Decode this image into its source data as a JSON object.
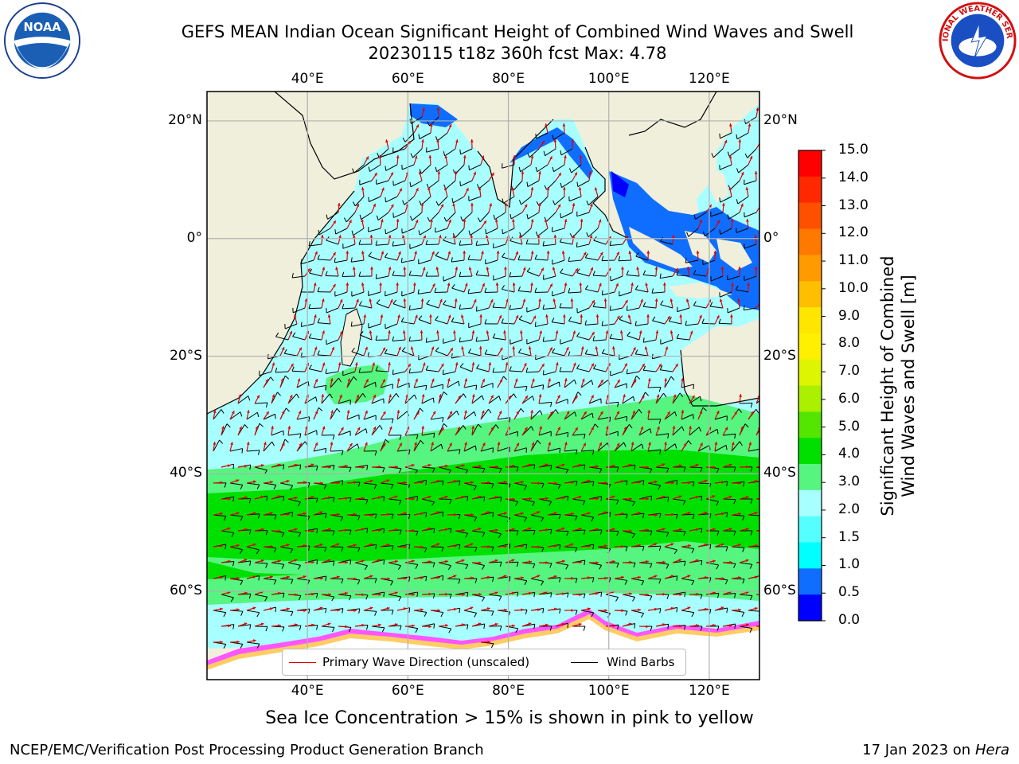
{
  "title": {
    "line1": "GEFS MEAN Indian Ocean Significant Height of Combined Wind Waves and Swell",
    "line2": "20230115 t18z 360h fcst   Max: 4.78"
  },
  "map": {
    "lon_ticks": [
      "40°E",
      "60°E",
      "80°E",
      "100°E",
      "120°E"
    ],
    "lat_ticks": [
      "20°N",
      "0°",
      "20°S",
      "40°S",
      "60°S"
    ],
    "lon_range": [
      20,
      130
    ],
    "lat_range": [
      -75,
      25
    ],
    "colors": {
      "land": "#efefdc",
      "ocean_low": "#00ffff",
      "ocean_mid": "#a8ffff",
      "ocean_high": "#55f57f",
      "ocean_peak": "#00e000",
      "shelf": "#0f6eff",
      "ice": "#ff55ff"
    }
  },
  "legend": {
    "wave_dir": "Primary Wave Direction (unscaled)",
    "wind_barbs": "Wind Barbs"
  },
  "colorbar": {
    "title_line1": "Significant Height of Combined",
    "title_line2": "Wind Waves and Swell [m]",
    "labels": [
      "15.0",
      "14.0",
      "13.0",
      "12.0",
      "11.0",
      "10.0",
      "9.0",
      "8.0",
      "7.0",
      "6.0",
      "5.0",
      "4.0",
      "3.0",
      "2.0",
      "1.5",
      "1.0",
      "0.5",
      "0.0"
    ],
    "colors": [
      "#ff0000",
      "#ff2800",
      "#ff5000",
      "#ff7800",
      "#ff9a00",
      "#ffbe00",
      "#ffe600",
      "#fff000",
      "#ddf500",
      "#aaf000",
      "#55e600",
      "#00e000",
      "#55f57f",
      "#a8ffff",
      "#55ffff",
      "#00ffff",
      "#0f6eff",
      "#0000ff"
    ]
  },
  "caption": "Sea Ice Concentration > 15% is shown in pink to yellow",
  "footer": {
    "left": "NCEP/EMC/Verification Post Processing Product Generation Branch",
    "right_prefix": "17 Jan 2023 on ",
    "right_italic": "Hera"
  },
  "logos": {
    "noaa_text": "NOAA",
    "nws_text": "NATIONAL WEATHER SERVICE"
  }
}
